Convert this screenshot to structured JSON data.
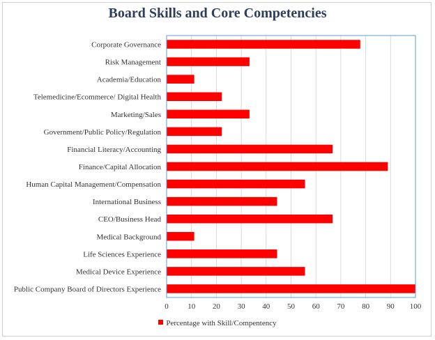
{
  "chart_data": {
    "type": "bar",
    "orientation": "horizontal",
    "title": "Board Skills and Core Competencies",
    "categories": [
      "Corporate Governance",
      "Risk Management",
      "Academia/Education",
      "Telemedicine/Ecommerce/ Digital Health",
      "Marketing/Sales",
      "Government/Public Policy/Regulation",
      "Financial Literacy/Accounting",
      "Finance/Capital Allocation",
      "Human Capital Management/Compensation",
      "International Business",
      "CEO/Business Head",
      "Medical Background",
      "Life Sciences Experience",
      "Medical Device Experience",
      "Public Company Board of Directors Experience"
    ],
    "series": [
      {
        "name": "Percentage with Skill/Compentency",
        "values": [
          77.8,
          33.3,
          11.1,
          22.2,
          33.3,
          22.2,
          66.7,
          88.9,
          55.6,
          44.4,
          66.7,
          11.1,
          44.4,
          55.6,
          100
        ]
      }
    ],
    "x_ticks": [
      "0",
      "10",
      "20",
      "30",
      "40",
      "50",
      "60",
      "70",
      "80",
      "90",
      "100"
    ],
    "xlim": [
      0,
      100
    ],
    "grid": true,
    "legend_position": "bottom",
    "colors": {
      "bar": "#ff0000",
      "axis": "#5b9bd5",
      "grid": "#d9d9d9"
    }
  }
}
